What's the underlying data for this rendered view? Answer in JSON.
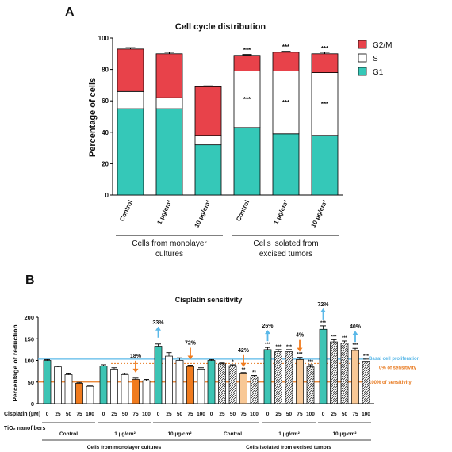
{
  "colors": {
    "g2m": "#e8424a",
    "s": "#ffffff",
    "g1": "#35c8b8",
    "white_bar": "#ffffff",
    "orange_bar": "#f07b1e",
    "teal_bar": "#3cc4b4",
    "light_orange_bar": "#f8c896",
    "basal_line": "#5ab8e8",
    "zero_line": "#e87a20",
    "hundred_line": "#e87a20",
    "up_arrow": "#5ab8e8",
    "down_arrow": "#f07b1e",
    "hatch_fill": "#666666"
  },
  "panels": {
    "a": {
      "letter": "A"
    },
    "b": {
      "letter": "B"
    }
  },
  "chart_data": [
    {
      "type": "bar",
      "stacked": true,
      "title": "Cell cycle distribution",
      "ylabel": "Percentage of cells",
      "ylim": [
        0,
        100
      ],
      "yticks": [
        "0",
        "20",
        "40",
        "60",
        "80",
        "100"
      ],
      "categories": [
        "Control",
        "1 µg/cm²",
        "10 µg/cm²",
        "Control",
        "1 µg/cm²",
        "10 µg/cm²"
      ],
      "series": [
        {
          "name": "G1",
          "values": [
            55,
            55,
            32,
            43,
            39,
            38
          ],
          "errors": [
            1,
            4,
            4,
            0.5,
            1,
            1
          ]
        },
        {
          "name": "S",
          "values": [
            11,
            7,
            6,
            36,
            40,
            40
          ],
          "errors": [
            0.5,
            1,
            1,
            0.5,
            1,
            0.5
          ]
        },
        {
          "name": "G2/M",
          "values": [
            27,
            28,
            31,
            10,
            12,
            12
          ],
          "errors": [
            0.8,
            1,
            0.5,
            0.5,
            0.5,
            1
          ]
        }
      ],
      "legend": [
        "G2/M",
        "S",
        "G1"
      ],
      "legend_position": "top-right",
      "annotations": {
        "significance": [
          "",
          "",
          "",
          "***",
          "***",
          "***"
        ],
        "s_significance": [
          "",
          "",
          "",
          "***",
          "***",
          "***"
        ]
      },
      "groups": [
        {
          "label_line1": "Cells from monolayer",
          "label_line2": "cultures",
          "span": [
            0,
            2
          ]
        },
        {
          "label_line1": "Cells isolated from",
          "label_line2": "excised tumors",
          "span": [
            3,
            5
          ]
        }
      ]
    },
    {
      "type": "bar",
      "title": "Cisplatin sensitivity",
      "ylabel": "Percentage of reduction",
      "ylim": [
        0,
        200
      ],
      "yticks": [
        "0",
        "50",
        "100",
        "150",
        "200"
      ],
      "row_labels": {
        "cisplatin": "Cisplatin  (µM)",
        "tio2": "TiO₂ nanofibers"
      },
      "cisplatin_doses": [
        "0",
        "25",
        "50",
        "75",
        "100"
      ],
      "groups": [
        {
          "label": "Control",
          "values": [
            100,
            85,
            67,
            47,
            40
          ],
          "errors": [
            2,
            2,
            2,
            2,
            2
          ],
          "sig": [
            "",
            "",
            "",
            "",
            ""
          ],
          "style": "plain"
        },
        {
          "label": "1 µg/cm²",
          "values": [
            87,
            80,
            67,
            56,
            53
          ],
          "errors": [
            3,
            3,
            3,
            3,
            3
          ],
          "sig": [
            "",
            "",
            "",
            "",
            ""
          ],
          "style": "plain"
        },
        {
          "label": "10 µg/cm²",
          "values": [
            133,
            110,
            100,
            86,
            80
          ],
          "errors": [
            5,
            8,
            6,
            3,
            3
          ],
          "sig": [
            "",
            "",
            "",
            "",
            ""
          ],
          "style": "plain"
        },
        {
          "label": "Control",
          "values": [
            100,
            92,
            88,
            69,
            62
          ],
          "errors": [
            2,
            2,
            2,
            3,
            3
          ],
          "sig": [
            "",
            "",
            "*",
            "**",
            "**"
          ],
          "style": "hatched"
        },
        {
          "label": "1 µg/cm²",
          "values": [
            125,
            120,
            120,
            102,
            85
          ],
          "errors": [
            5,
            5,
            5,
            5,
            5
          ],
          "sig": [
            "***",
            "***",
            "***",
            "***",
            "***"
          ],
          "style": "hatched"
        },
        {
          "label": "10 µg/cm²",
          "values": [
            172,
            143,
            140,
            123,
            98
          ],
          "errors": [
            8,
            5,
            5,
            5,
            5
          ],
          "sig": [
            "***",
            "***",
            "***",
            "***",
            "***"
          ],
          "style": "hatched"
        }
      ],
      "super_groups": [
        {
          "label": "Cells from monolayer cultures",
          "span": [
            0,
            2
          ]
        },
        {
          "label": "Cells isolated from excised tumors",
          "span": [
            3,
            5
          ]
        }
      ],
      "reference_lines": [
        {
          "label": "Basal cell proliferation",
          "value": 103
        },
        {
          "label": "0% of sensitivity",
          "value": 93
        },
        {
          "label": "100% of sensitivity",
          "value": 50
        }
      ],
      "arrow_annotations": [
        {
          "label": "18%",
          "group": 1,
          "bar": 3,
          "direction": "down"
        },
        {
          "label": "33%",
          "group": 2,
          "bar": 0,
          "direction": "up"
        },
        {
          "label": "72%",
          "group": 2,
          "bar": 3,
          "direction": "down"
        },
        {
          "label": "42%",
          "group": 3,
          "bar": 3,
          "direction": "down"
        },
        {
          "label": "26%",
          "group": 4,
          "bar": 0,
          "direction": "up"
        },
        {
          "label": "4%",
          "group": 4,
          "bar": 3,
          "direction": "down"
        },
        {
          "label": "72%",
          "group": 5,
          "bar": 0,
          "direction": "up"
        },
        {
          "label": "40%",
          "group": 5,
          "bar": 3,
          "direction": "up"
        }
      ]
    }
  ]
}
